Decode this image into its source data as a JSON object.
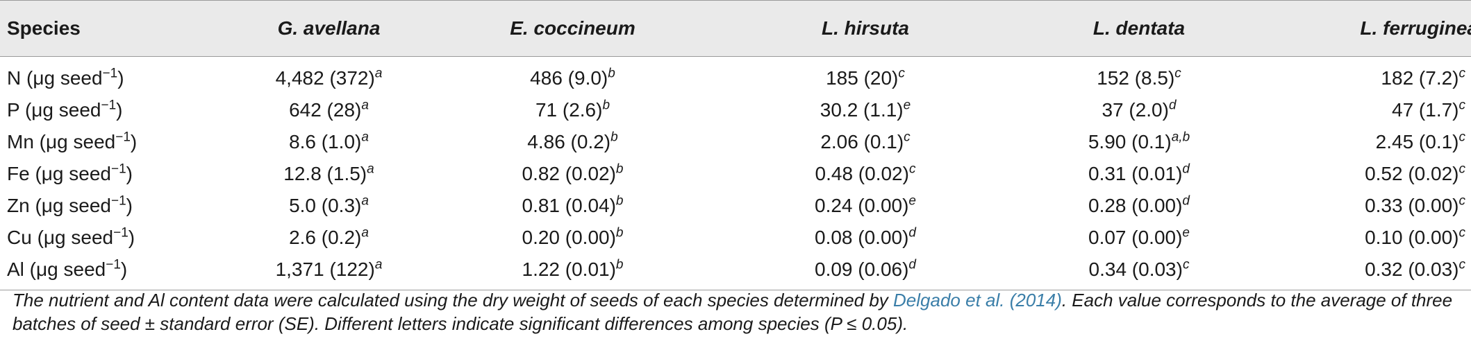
{
  "table": {
    "header": {
      "species_label": "Species",
      "species": [
        "G. avellana",
        "E. coccineum",
        "L. hirsuta",
        "L. dentata",
        "L. ferruginea"
      ]
    },
    "unit": {
      "open": " (μg seed",
      "exp": "−1",
      "close": ")"
    },
    "rows": [
      {
        "element": "N",
        "values": [
          {
            "v": "4,482 (372)",
            "sup": "a"
          },
          {
            "v": "486 (9.0)",
            "sup": "b"
          },
          {
            "v": "185 (20)",
            "sup": "c"
          },
          {
            "v": "152 (8.5)",
            "sup": "c"
          },
          {
            "v": "182 (7.2)",
            "sup": "c"
          }
        ]
      },
      {
        "element": "P",
        "values": [
          {
            "v": "642 (28)",
            "sup": "a"
          },
          {
            "v": "71 (2.6)",
            "sup": "b"
          },
          {
            "v": "30.2 (1.1)",
            "sup": "e"
          },
          {
            "v": "37 (2.0)",
            "sup": "d"
          },
          {
            "v": "47 (1.7)",
            "sup": "c"
          }
        ]
      },
      {
        "element": "Mn",
        "values": [
          {
            "v": "8.6 (1.0)",
            "sup": "a"
          },
          {
            "v": "4.86 (0.2)",
            "sup": "b"
          },
          {
            "v": "2.06 (0.1)",
            "sup": "c"
          },
          {
            "v": "5.90 (0.1)",
            "sup": "a,b"
          },
          {
            "v": "2.45 (0.1)",
            "sup": "c"
          }
        ]
      },
      {
        "element": "Fe",
        "values": [
          {
            "v": "12.8 (1.5)",
            "sup": "a"
          },
          {
            "v": "0.82 (0.02)",
            "sup": "b"
          },
          {
            "v": "0.48 (0.02)",
            "sup": "c"
          },
          {
            "v": "0.31 (0.01)",
            "sup": "d"
          },
          {
            "v": "0.52 (0.02)",
            "sup": "c"
          }
        ]
      },
      {
        "element": "Zn",
        "values": [
          {
            "v": "5.0 (0.3)",
            "sup": "a"
          },
          {
            "v": "0.81 (0.04)",
            "sup": "b"
          },
          {
            "v": "0.24 (0.00)",
            "sup": "e"
          },
          {
            "v": "0.28 (0.00)",
            "sup": "d"
          },
          {
            "v": "0.33 (0.00)",
            "sup": "c"
          }
        ]
      },
      {
        "element": "Cu",
        "values": [
          {
            "v": "2.6 (0.2)",
            "sup": "a"
          },
          {
            "v": "0.20 (0.00)",
            "sup": "b"
          },
          {
            "v": "0.08 (0.00)",
            "sup": "d"
          },
          {
            "v": "0.07 (0.00)",
            "sup": "e"
          },
          {
            "v": "0.10 (0.00)",
            "sup": "c"
          }
        ]
      },
      {
        "element": "Al",
        "values": [
          {
            "v": "1,371 (122)",
            "sup": "a"
          },
          {
            "v": "1.22 (0.01)",
            "sup": "b"
          },
          {
            "v": "0.09 (0.06)",
            "sup": "d"
          },
          {
            "v": "0.34 (0.03)",
            "sup": "c"
          },
          {
            "v": "0.32 (0.03)",
            "sup": "c"
          }
        ]
      }
    ]
  },
  "footnote": {
    "part1": "The nutrient and Al content data were calculated using the dry weight of seeds of each species determined by ",
    "citation": "Delgado et al. (2014)",
    "part2": ". Each value corresponds to the average of three batches of seed ± standard error (SE). Different letters indicate significant differences among species (P ≤ 0.05)."
  },
  "colors": {
    "header_bg": "#eaeaea",
    "rule": "#9a9a9a",
    "citation_link": "#3a7ea8"
  }
}
